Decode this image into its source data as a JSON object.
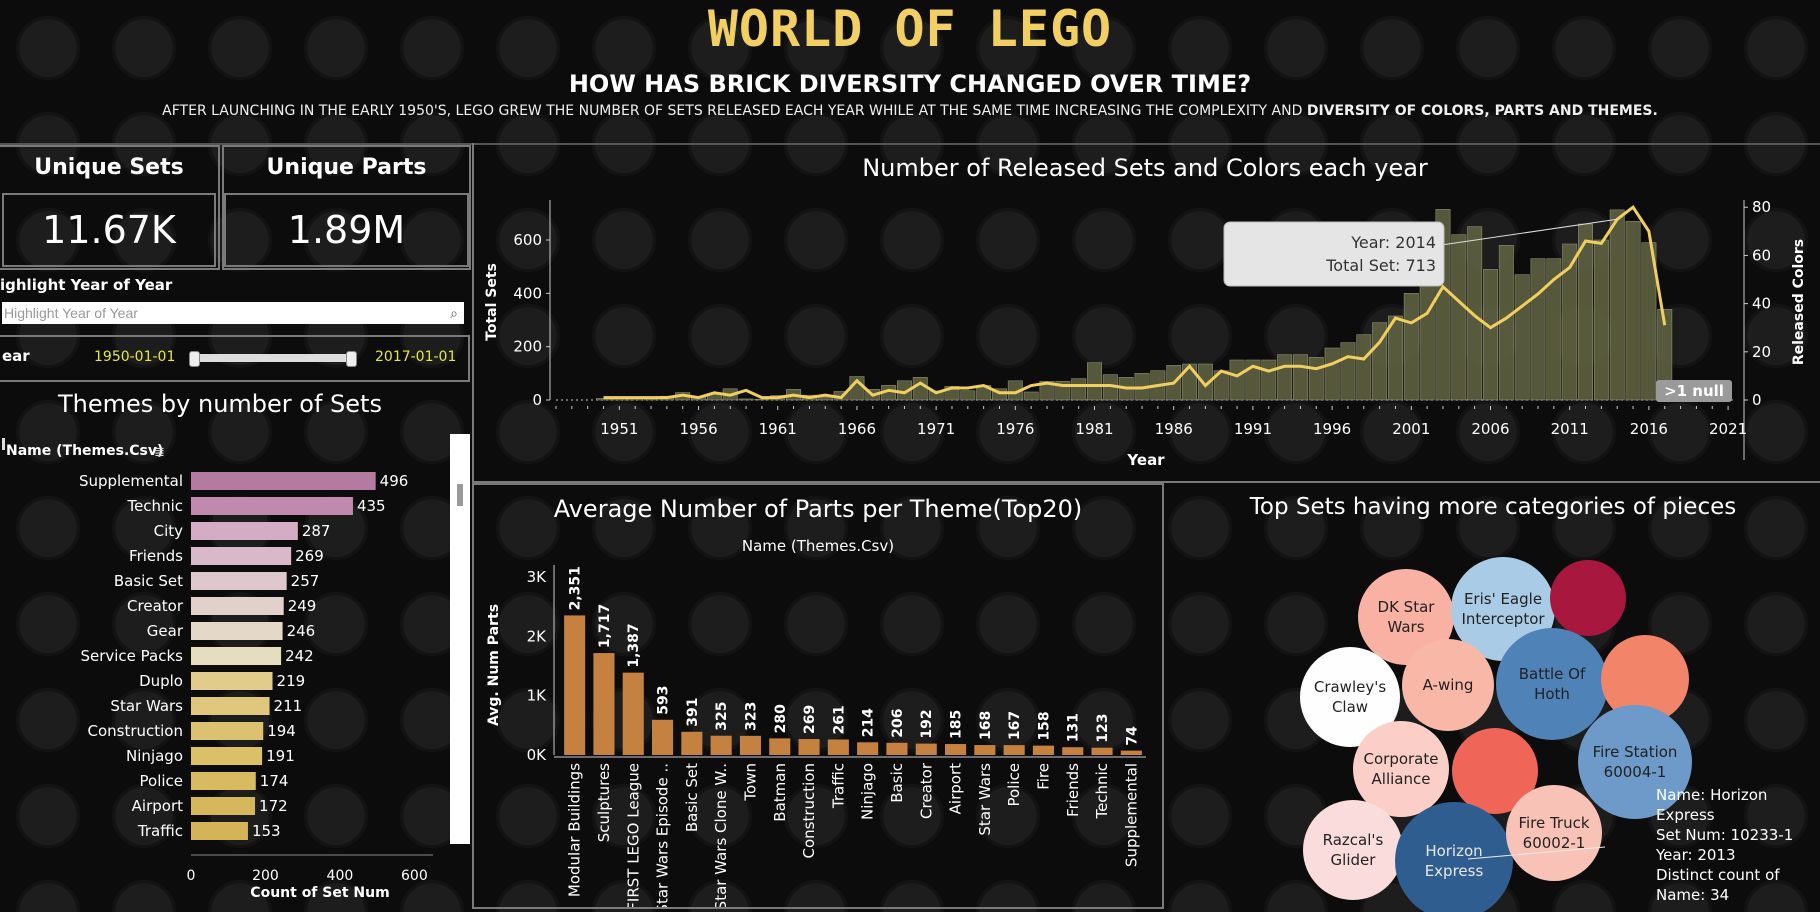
{
  "header": {
    "title": "WORLD OF LEGO",
    "subtitle": "HOW HAS BRICK DIVERSITY CHANGED OVER TIME?",
    "desc_normal": "AFTER LAUNCHING IN THE EARLY 1950'S, LEGO GREW THE NUMBER OF SETS RELEASED EACH YEAR WHILE AT THE SAME TIME INCREASING THE COMPLEXITY AND ",
    "desc_bold": "DIVERSITY OF COLORS, PARTS AND THEMES."
  },
  "kpis": [
    {
      "label": "Unique Sets",
      "value": "11.67K"
    },
    {
      "label": "Unique Parts",
      "value": "1.89M"
    }
  ],
  "filters": {
    "highlight_label": "ighlight Year of Year",
    "highlight_placeholder": "Highlight Year of Year",
    "year_label": "ear",
    "year_start": "1950-01-01",
    "year_end": "2017-01-01"
  },
  "colors": {
    "sets_bar": "#5f6141",
    "colors_line": "#f1cf5e",
    "parts_bar": "#c4813f",
    "accent_title": "#f2cf63"
  },
  "chart_data": [
    {
      "id": "themes",
      "type": "bar",
      "orientation": "horizontal",
      "title": "Themes by number of Sets",
      "header_label": "Name (Themes.Csv)",
      "xlabel": "Count of Set Num",
      "xlim": [
        0,
        650
      ],
      "xticks": [
        0,
        200,
        400,
        600
      ],
      "categories": [
        "Supplemental",
        "Technic",
        "City",
        "Friends",
        "Basic Set",
        "Creator",
        "Gear",
        "Service Packs",
        "Duplo",
        "Star Wars",
        "Construction",
        "Ninjago",
        "Police",
        "Airport",
        "Traffic"
      ],
      "values": [
        496,
        435,
        287,
        269,
        257,
        249,
        246,
        242,
        219,
        211,
        194,
        191,
        174,
        172,
        153
      ],
      "colors": [
        "#b47aa0",
        "#c089ad",
        "#d4acc4",
        "#d8b8c9",
        "#dfc8cd",
        "#e2d0cc",
        "#e4d8c8",
        "#e6dcc0",
        "#e2cc8c",
        "#e0c77e",
        "#dcc270",
        "#dbc068",
        "#d8bb60",
        "#d6b85c",
        "#d4b456"
      ]
    },
    {
      "id": "sets_colors",
      "type": "bar+line",
      "title": "Number of Released Sets and Colors each year",
      "xlabel": "Year",
      "ylabel": "Total Sets",
      "y2label": "Released Colors",
      "ylim": [
        0,
        750
      ],
      "yticks": [
        0,
        200,
        400,
        600
      ],
      "y2lim": [
        0,
        83
      ],
      "y2ticks": [
        0,
        20,
        40,
        60,
        80
      ],
      "xlim": [
        1947,
        2021.5
      ],
      "xticks": [
        1951,
        1956,
        1961,
        1966,
        1971,
        1976,
        1981,
        1986,
        1991,
        1996,
        2001,
        2006,
        2011,
        2016,
        2021
      ],
      "x": [
        1950,
        1951,
        1952,
        1953,
        1954,
        1955,
        1956,
        1957,
        1958,
        1959,
        1960,
        1961,
        1962,
        1963,
        1964,
        1965,
        1966,
        1967,
        1968,
        1969,
        1970,
        1971,
        1972,
        1973,
        1974,
        1975,
        1976,
        1977,
        1978,
        1979,
        1980,
        1981,
        1982,
        1983,
        1984,
        1985,
        1986,
        1987,
        1988,
        1989,
        1990,
        1991,
        1992,
        1993,
        1994,
        1995,
        1996,
        1997,
        1998,
        1999,
        2000,
        2001,
        2002,
        2003,
        2004,
        2005,
        2006,
        2007,
        2008,
        2009,
        2010,
        2011,
        2012,
        2013,
        2014,
        2015,
        2016,
        2017
      ],
      "series": [
        {
          "name": "Total Sets",
          "values": [
            6,
            6,
            6,
            4,
            14,
            28,
            12,
            21,
            42,
            4,
            3,
            17,
            40,
            18,
            11,
            32,
            88,
            40,
            55,
            72,
            85,
            34,
            51,
            35,
            55,
            42,
            72,
            30,
            70,
            70,
            80,
            140,
            95,
            85,
            100,
            110,
            130,
            135,
            135,
            110,
            150,
            150,
            150,
            170,
            170,
            160,
            195,
            215,
            245,
            290,
            315,
            400,
            470,
            715,
            620,
            650,
            490,
            580,
            470,
            530,
            530,
            585,
            660,
            600,
            713,
            670,
            590,
            340
          ]
        },
        {
          "name": "Released Colors",
          "values": [
            1,
            1,
            1,
            1,
            1,
            2,
            1,
            3,
            2,
            4,
            1,
            1,
            2,
            1,
            2,
            1,
            8,
            2,
            4,
            3,
            7,
            3,
            5,
            5,
            6,
            3,
            3,
            6,
            7,
            6,
            6,
            6,
            6,
            5,
            5,
            6,
            7,
            14,
            6,
            12,
            10,
            14,
            12,
            14,
            14,
            13,
            15,
            18,
            17,
            24,
            34,
            32,
            36,
            47,
            41,
            35,
            30,
            34,
            39,
            44,
            50,
            55,
            66,
            65,
            75,
            80,
            70,
            31
          ]
        }
      ],
      "tooltip": {
        "year_label": "Year:",
        "year": "2014",
        "total_label": "Total Set:",
        "total": "713"
      },
      "null_badge": ">1 null"
    },
    {
      "id": "parts",
      "type": "bar",
      "title": "Average Number of Parts per Theme(Top20)",
      "header_label": "Name (Themes.Csv)",
      "ylabel": "Avg. Num Parts",
      "ylim": [
        0,
        3200
      ],
      "ytick_labels": [
        "0K",
        "1K",
        "2K",
        "3K"
      ],
      "yticks": [
        0,
        1000,
        2000,
        3000
      ],
      "categories": [
        "Modular Buildings",
        "Sculptures",
        "FIRST LEGO League",
        "Star Wars Episode ..",
        "Basic Set",
        "Star Wars Clone W..",
        "Town",
        "Batman",
        "Construction",
        "Traffic",
        "Ninjago",
        "Basic",
        "Creator",
        "Airport",
        "Star Wars",
        "Police",
        "Fire",
        "Friends",
        "Technic",
        "Supplemental"
      ],
      "values": [
        2351,
        1717,
        1387,
        593,
        391,
        325,
        323,
        280,
        269,
        261,
        214,
        206,
        192,
        185,
        168,
        167,
        158,
        131,
        123,
        74
      ],
      "value_labels": [
        "2,351",
        "1,717",
        "1,387",
        "593",
        "391",
        "325",
        "323",
        "280",
        "269",
        "261",
        "214",
        "206",
        "192",
        "185",
        "168",
        "167",
        "158",
        "131",
        "123",
        "74"
      ]
    },
    {
      "id": "bubbles",
      "type": "bubble",
      "title": "Top Sets having more categories of pieces",
      "items": [
        {
          "label": "DK Star Wars",
          "color": "#f9b1a3"
        },
        {
          "label": "Eris' Eagle Interceptor",
          "color": "#a9cbe6"
        },
        {
          "label": "",
          "color": "#a8173e"
        },
        {
          "label": "Crawley's Claw",
          "color": "#fefefe"
        },
        {
          "label": "A-wing",
          "color": "#f9b7a8"
        },
        {
          "label": "Battle Of Hoth",
          "color": "#4f82b7"
        },
        {
          "label": "",
          "color": "#f2846a"
        },
        {
          "label": "Corporate Alliance",
          "color": "#fbcfc8"
        },
        {
          "label": "",
          "color": "#ef6659"
        },
        {
          "label": "Fire Station 60004-1",
          "color": "#6d9ac8"
        },
        {
          "label": "Razcal's Glider",
          "color": "#fbdcdc"
        },
        {
          "label": "Horizon Express",
          "color": "#2f5d8f"
        },
        {
          "label": "Fire Truck 60002-1",
          "color": "#f8c2b7"
        }
      ],
      "tooltip": [
        "Name: Horizon",
        "Express",
        "Set Num: 10233-1",
        "Year: 2013",
        "Distinct count of",
        "Name: 34"
      ]
    }
  ]
}
